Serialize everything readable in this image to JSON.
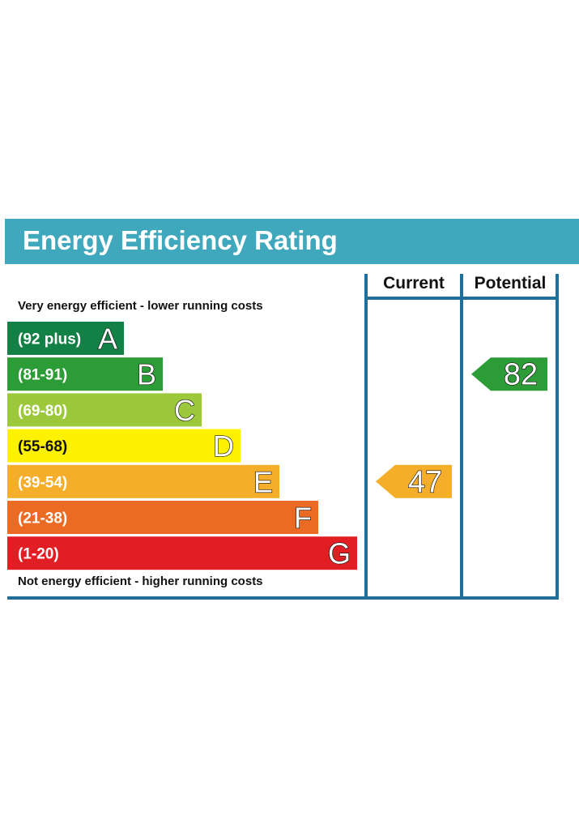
{
  "title": "Energy Efficiency Rating",
  "notes": {
    "top": "Very energy efficient - lower running costs",
    "bottom": "Not energy efficient - higher running costs"
  },
  "columns": {
    "current": "Current",
    "potential": "Potential"
  },
  "chart_data": {
    "type": "bar",
    "bands": [
      {
        "letter": "A",
        "range": "(92 plus)",
        "color": "#138045"
      },
      {
        "letter": "B",
        "range": "(81-91)",
        "color": "#2b9c36"
      },
      {
        "letter": "C",
        "range": "(69-80)",
        "color": "#9bc93b"
      },
      {
        "letter": "D",
        "range": "(55-68)",
        "color": "#fef200"
      },
      {
        "letter": "E",
        "range": "(39-54)",
        "color": "#f5ae29"
      },
      {
        "letter": "F",
        "range": "(21-38)",
        "color": "#ec6b24"
      },
      {
        "letter": "G",
        "range": "(1-20)",
        "color": "#e21e25"
      }
    ],
    "current": {
      "value": 47,
      "band": "E",
      "color": "#f5ae29"
    },
    "potential": {
      "value": 82,
      "band": "B",
      "color": "#2b9c36"
    }
  },
  "colors": {
    "header": "#3fa8bd",
    "frame": "#1f6f9a"
  }
}
